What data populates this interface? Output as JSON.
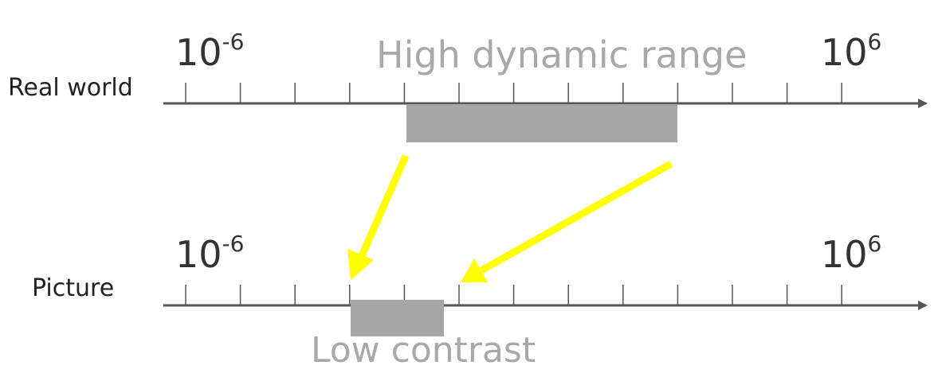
{
  "diagram": {
    "top_axis": {
      "name": "Real world",
      "left_label": {
        "base": "10",
        "exp": "-6"
      },
      "right_label": {
        "base": "10",
        "exp": "6"
      },
      "range_title": "High dynamic range"
    },
    "bottom_axis": {
      "name": "Picture",
      "left_label": {
        "base": "10",
        "exp": "-6"
      },
      "right_label": {
        "base": "10",
        "exp": "6"
      },
      "range_title": "Low contrast"
    },
    "colors": {
      "axis": "#555555",
      "range_bar": "#a6a6a6",
      "arrow": "#ffff00",
      "gray_text": "#a8a8a8"
    }
  }
}
